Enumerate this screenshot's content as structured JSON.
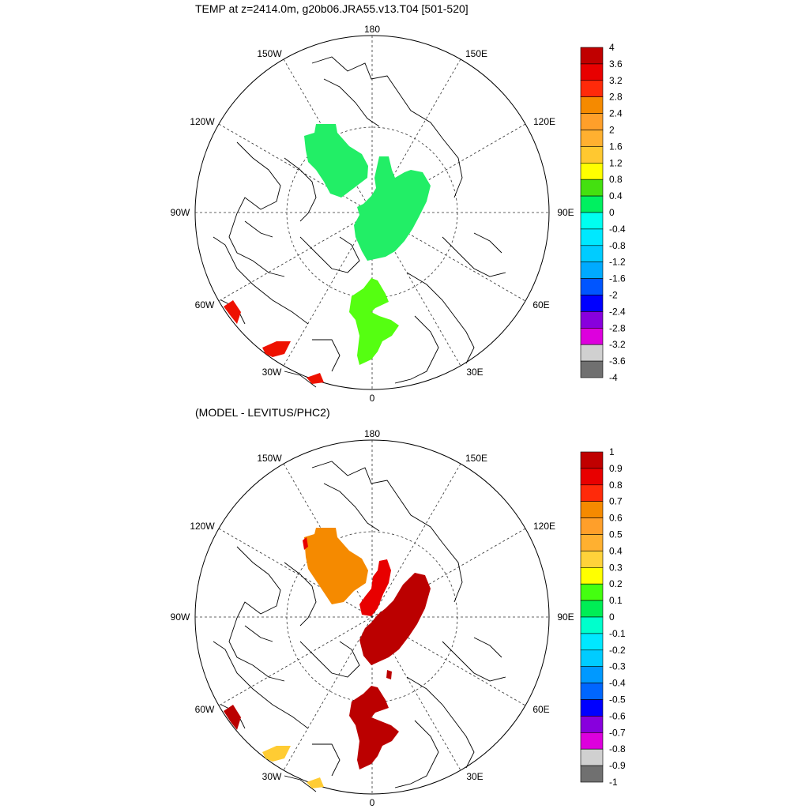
{
  "panels": [
    {
      "title": "TEMP at z=2414.0m, g20b06.JRA55.v13.T04 [501-520]",
      "lon_labels": {
        "180": "180",
        "150W": "150W",
        "150E": "150E",
        "120W": "120W",
        "120E": "120E",
        "90W": "90W",
        "90E": "90E",
        "60W": "60W",
        "60E": "60E",
        "30W": "30W",
        "30E": "30E",
        "0": "0"
      },
      "colorbar": {
        "labels": [
          "4",
          "3.6",
          "3.2",
          "2.8",
          "2.4",
          "2",
          "1.6",
          "1.2",
          "0.8",
          "0.4",
          "0",
          "-0.4",
          "-0.8",
          "-1.2",
          "-1.6",
          "-2",
          "-2.4",
          "-2.8",
          "-3.2",
          "-3.6",
          "-4"
        ],
        "colors": [
          "#c00000",
          "#e80000",
          "#ff2a0a",
          "#f58a00",
          "#ff9f2a",
          "#ffb030",
          "#ffc830",
          "#ffff00",
          "#44e010",
          "#00f060",
          "#00fff0",
          "#00e8ff",
          "#00ccff",
          "#00aaff",
          "#0055ff",
          "#0000ff",
          "#8800dd",
          "#dd00dd",
          "#d0d0d0",
          "#707070"
        ]
      },
      "fields": {
        "green": "#22ee66",
        "lime": "#55ff11",
        "red": "#ee1100"
      }
    },
    {
      "title": "(MODEL - LEVITUS/PHC2)",
      "lon_labels": {
        "180": "180",
        "150W": "150W",
        "150E": "150E",
        "120W": "120W",
        "120E": "120E",
        "90W": "90W",
        "90E": "90E",
        "60W": "60W",
        "60E": "60E",
        "30W": "30W",
        "30E": "30E",
        "0": "0"
      },
      "colorbar": {
        "labels": [
          "1",
          "0.9",
          "0.8",
          "0.7",
          "0.6",
          "0.5",
          "0.4",
          "0.3",
          "0.2",
          "0.1",
          "0",
          "-0.1",
          "-0.2",
          "-0.3",
          "-0.4",
          "-0.5",
          "-0.6",
          "-0.7",
          "-0.8",
          "-0.9",
          "-1"
        ],
        "colors": [
          "#c00000",
          "#e80000",
          "#ff2a0a",
          "#f58a00",
          "#ff9f2a",
          "#ffb030",
          "#ffd23a",
          "#ffff00",
          "#44ff10",
          "#00ee55",
          "#00ffcc",
          "#00e8ff",
          "#00ccff",
          "#0099ff",
          "#0066ff",
          "#0000ff",
          "#8800dd",
          "#dd00dd",
          "#d0d0d0",
          "#707070"
        ]
      },
      "fields": {
        "orange": "#f58a00",
        "darkred": "#bb0000",
        "red": "#e80000",
        "yellow": "#ffcc33"
      }
    }
  ]
}
